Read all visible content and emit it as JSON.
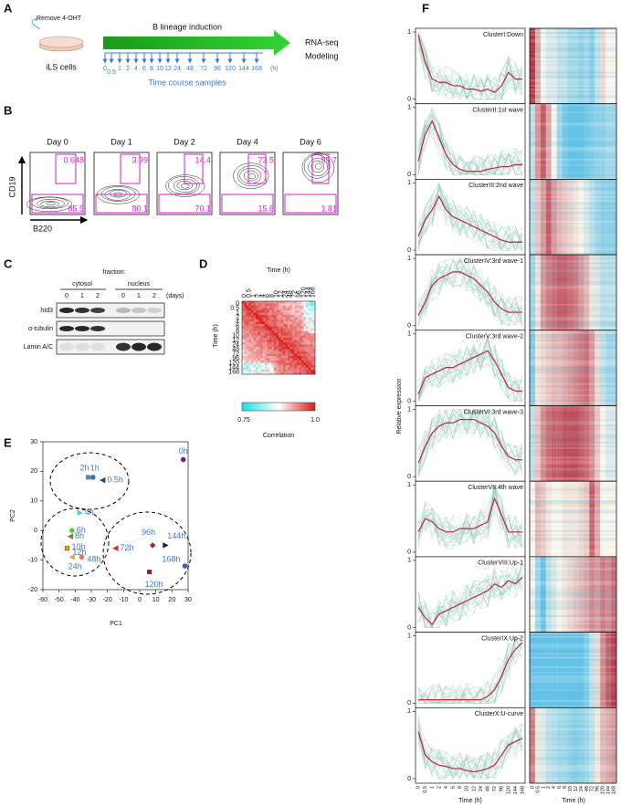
{
  "time_points": [
    "0",
    "0.5",
    "1",
    "2",
    "4",
    "6",
    "8",
    "10",
    "12",
    "24",
    "48",
    "72",
    "96",
    "120",
    "144",
    "168"
  ],
  "panel_a": {
    "label": "A",
    "remove": "Remove 4-OHT",
    "cells": "iLS cells",
    "induction": "B lineage induction",
    "output": [
      "RNA-seq",
      "Modeling"
    ],
    "unit": "(h)",
    "caption": "Time course samples"
  },
  "panel_b": {
    "label": "B",
    "y_axis": "CD19",
    "x_axis": "B220",
    "plots": [
      {
        "day": "Day 0",
        "upper": "0.648",
        "lower": "85.5"
      },
      {
        "day": "Day 1",
        "upper": "3.99",
        "lower": "80.1"
      },
      {
        "day": "Day 2",
        "upper": "14.4",
        "lower": "70.1"
      },
      {
        "day": "Day 4",
        "upper": "73.5",
        "lower": "15.6"
      },
      {
        "day": "Day 6",
        "upper": "95.7",
        "lower": "1.81"
      }
    ]
  },
  "panel_c": {
    "label": "C",
    "fraction": "fraction:",
    "groups": [
      "cytosol",
      "nucleus"
    ],
    "lanes": [
      "0",
      "1",
      "2",
      "0",
      "1",
      "2"
    ],
    "unit": "(days)",
    "rows": [
      "hId3",
      "α-tubulin",
      "Lamin A/C"
    ]
  },
  "panel_d": {
    "label": "D",
    "axis_title": "Time (h)",
    "colorbar": {
      "min": "0.75",
      "max": "1.0",
      "title": "Correlation"
    }
  },
  "panel_e": {
    "label": "E",
    "x_label": "PC1",
    "y_label": "PC2",
    "xlim": [
      -60,
      30
    ],
    "ylim": [
      -20,
      30
    ],
    "xticks": [
      -60,
      -50,
      -40,
      -30,
      -20,
      -10,
      0,
      10,
      20,
      30
    ],
    "yticks": [
      -20,
      -10,
      0,
      10,
      20,
      30
    ],
    "points": {
      "labels": [
        "0h",
        "0.5h",
        "1h",
        "2h",
        "4h",
        "6h",
        "8h",
        "10h",
        "12h",
        "24h",
        "48h",
        "72h",
        "96h",
        "120h",
        "144h",
        "168h"
      ],
      "x": [
        27,
        -23,
        -29,
        -32,
        -37,
        -42,
        -43,
        -45,
        -45,
        -42,
        -36,
        -15,
        8,
        6,
        16,
        28
      ],
      "y": [
        24,
        17,
        18,
        18,
        6,
        0,
        -2,
        -6,
        -6,
        -9,
        -9,
        -6,
        -5,
        -14,
        -5,
        -12
      ],
      "colors": [
        "#6b2a7a",
        "#2c3e7a",
        "#3a6fb0",
        "#5a8a9a",
        "#4fc3e8",
        "#4cd137",
        "#8a7a2a",
        "#2b2b6b",
        "#d4a017",
        "#f0a030",
        "#e8765a",
        "#d03030",
        "#a03020",
        "#7a1f6a",
        "#222222",
        "#3a5fb5"
      ],
      "shapes": [
        "circle",
        "triangle-left",
        "circle",
        "square",
        "triangle-right",
        "circle",
        "triangle-left",
        "square",
        "diamond",
        "triangle-left",
        "circle",
        "triangle-left",
        "diamond",
        "square",
        "triangle-right",
        "circle"
      ]
    }
  },
  "panel_f": {
    "label": "F",
    "y_label": "Relative expression",
    "x_label": "Time (h)",
    "ylim": [
      0,
      1
    ],
    "yticks": [
      0,
      1
    ],
    "line_color": "#c0273a",
    "clusters": [
      {
        "name": "ClusterI:Down",
        "mean": [
          0.95,
          0.55,
          0.3,
          0.25,
          0.25,
          0.2,
          0.2,
          0.15,
          0.15,
          0.12,
          0.15,
          0.1,
          0.2,
          0.4,
          0.3,
          0.3
        ]
      },
      {
        "name": "ClusterII:1st wave",
        "mean": [
          0.2,
          0.6,
          0.8,
          0.55,
          0.3,
          0.15,
          0.08,
          0.05,
          0.05,
          0.05,
          0.08,
          0.1,
          0.12,
          0.12,
          0.15,
          0.15
        ]
      },
      {
        "name": "ClusterIII:2nd wave",
        "mean": [
          0.2,
          0.45,
          0.6,
          0.8,
          0.6,
          0.5,
          0.45,
          0.4,
          0.35,
          0.3,
          0.25,
          0.2,
          0.15,
          0.12,
          0.12,
          0.12
        ]
      },
      {
        "name": "ClusterIV:3rd wave-1",
        "mean": [
          0.15,
          0.35,
          0.6,
          0.7,
          0.75,
          0.8,
          0.8,
          0.75,
          0.7,
          0.6,
          0.5,
          0.35,
          0.25,
          0.2,
          0.2,
          0.2
        ]
      },
      {
        "name": "ClusterV:3rd wave-2",
        "mean": [
          0.1,
          0.35,
          0.4,
          0.45,
          0.5,
          0.5,
          0.55,
          0.6,
          0.65,
          0.7,
          0.75,
          0.6,
          0.4,
          0.2,
          0.15,
          0.15
        ]
      },
      {
        "name": "ClusterVI:3rd wave-3",
        "mean": [
          0.2,
          0.45,
          0.65,
          0.75,
          0.8,
          0.8,
          0.85,
          0.85,
          0.85,
          0.8,
          0.75,
          0.65,
          0.45,
          0.3,
          0.25,
          0.25
        ]
      },
      {
        "name": "ClusterVII:4th wave",
        "mean": [
          0.3,
          0.5,
          0.45,
          0.35,
          0.3,
          0.3,
          0.35,
          0.35,
          0.35,
          0.4,
          0.45,
          0.8,
          0.55,
          0.3,
          0.3,
          0.3
        ]
      },
      {
        "name": "ClusterVIII:Up-1",
        "mean": [
          0.3,
          0.15,
          0.05,
          0.2,
          0.25,
          0.3,
          0.35,
          0.4,
          0.45,
          0.5,
          0.55,
          0.65,
          0.6,
          0.7,
          0.65,
          0.75
        ]
      },
      {
        "name": "ClusterIX:Up-2",
        "mean": [
          0.05,
          0.05,
          0.05,
          0.05,
          0.05,
          0.05,
          0.05,
          0.05,
          0.05,
          0.05,
          0.1,
          0.2,
          0.4,
          0.65,
          0.8,
          0.9
        ]
      },
      {
        "name": "ClusterX:U-curve",
        "mean": [
          0.7,
          0.35,
          0.25,
          0.2,
          0.18,
          0.15,
          0.15,
          0.12,
          0.1,
          0.12,
          0.15,
          0.2,
          0.35,
          0.5,
          0.55,
          0.6
        ]
      }
    ]
  }
}
